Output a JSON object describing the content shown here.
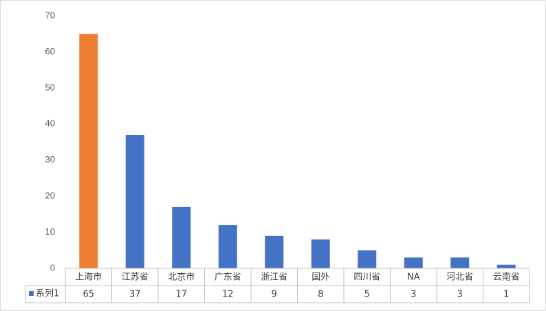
{
  "chart_data": {
    "type": "bar",
    "categories": [
      "上海市",
      "江苏省",
      "北京市",
      "广东省",
      "浙江省",
      "国外",
      "四川省",
      "NA",
      "河北省",
      "云南省"
    ],
    "series": [
      {
        "name": "系列1",
        "color": "#4472c4",
        "colors": [
          "#ed7d31",
          "#4472c4",
          "#4472c4",
          "#4472c4",
          "#4472c4",
          "#4472c4",
          "#4472c4",
          "#4472c4",
          "#4472c4",
          "#4472c4"
        ],
        "values": [
          65,
          37,
          17,
          12,
          9,
          8,
          5,
          3,
          3,
          1
        ]
      }
    ],
    "ylim": [
      0,
      70
    ],
    "yticks": [
      0,
      10,
      20,
      30,
      40,
      50,
      60,
      70
    ],
    "grid": false,
    "data_table": true
  }
}
